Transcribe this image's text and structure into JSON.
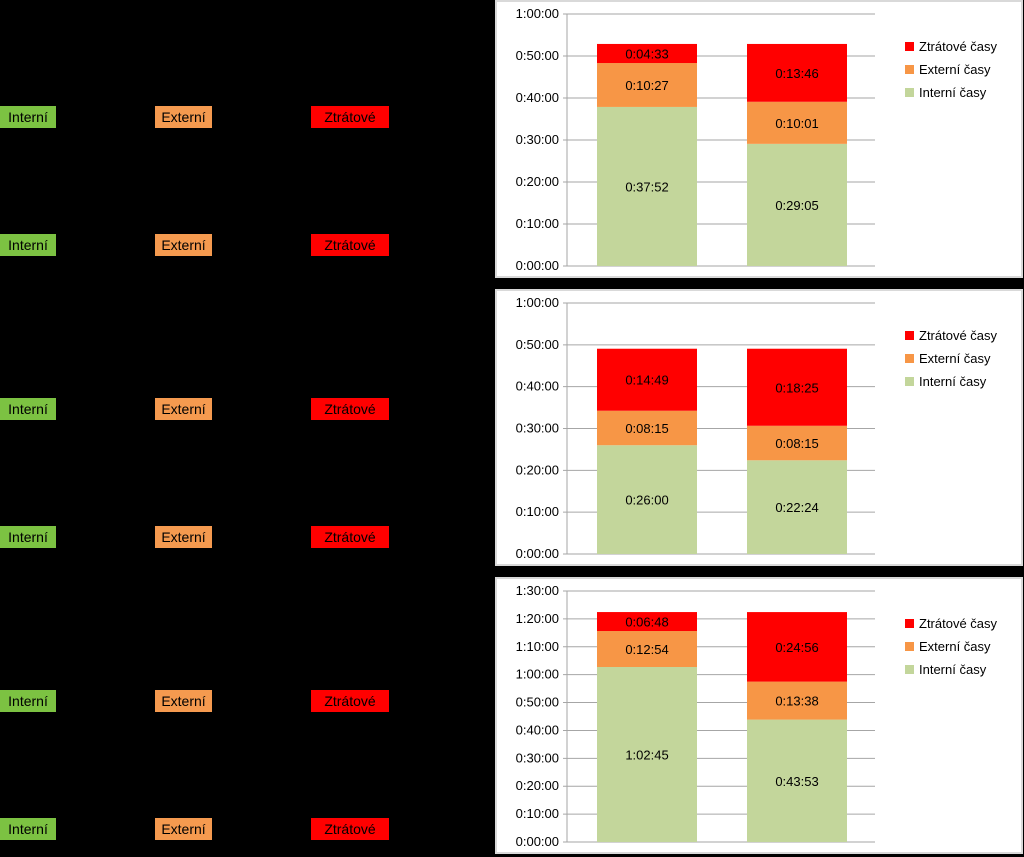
{
  "labels": {
    "internal": "Interní",
    "external": "Externí",
    "lost": "Ztrátové"
  },
  "colors": {
    "internal": "#c3d69b",
    "external": "#f79646",
    "lost": "#ff0000",
    "tag_internal": "#7cc242",
    "tag_external": "#f59a4f",
    "tag_lost": "#ff0000"
  },
  "chart_data": [
    {
      "type": "bar",
      "stacked": true,
      "categories": [
        "",
        ""
      ],
      "yticks": [
        "0:00:00",
        "0:10:00",
        "0:20:00",
        "0:30:00",
        "0:40:00",
        "0:50:00",
        "1:00:00"
      ],
      "ylim_minutes": [
        0,
        60
      ],
      "legend_position": "right",
      "series": [
        {
          "name": "Interní časy",
          "values_minutes": [
            37.87,
            29.08
          ],
          "labels": [
            "0:37:52",
            "0:29:05"
          ]
        },
        {
          "name": "Externí časy",
          "values_minutes": [
            10.45,
            10.02
          ],
          "labels": [
            "0:10:27",
            "0:10:01"
          ]
        },
        {
          "name": "Ztrátové časy",
          "values_minutes": [
            4.55,
            13.77
          ],
          "labels": [
            "0:04:33",
            "0:13:46"
          ]
        }
      ]
    },
    {
      "type": "bar",
      "stacked": true,
      "categories": [
        "",
        ""
      ],
      "yticks": [
        "0:00:00",
        "0:10:00",
        "0:20:00",
        "0:30:00",
        "0:40:00",
        "0:50:00",
        "1:00:00"
      ],
      "ylim_minutes": [
        0,
        60
      ],
      "legend_position": "right",
      "series": [
        {
          "name": "Interní časy",
          "values_minutes": [
            26.0,
            22.4
          ],
          "labels": [
            "0:26:00",
            "0:22:24"
          ]
        },
        {
          "name": "Externí časy",
          "values_minutes": [
            8.25,
            8.25
          ],
          "labels": [
            "0:08:15",
            "0:08:15"
          ]
        },
        {
          "name": "Ztrátové časy",
          "values_minutes": [
            14.82,
            18.42
          ],
          "labels": [
            "0:14:49",
            "0:18:25"
          ]
        }
      ]
    },
    {
      "type": "bar",
      "stacked": true,
      "categories": [
        "",
        ""
      ],
      "yticks": [
        "0:00:00",
        "0:10:00",
        "0:20:00",
        "0:30:00",
        "0:40:00",
        "0:50:00",
        "1:00:00",
        "1:10:00",
        "1:20:00",
        "1:30:00"
      ],
      "ylim_minutes": [
        0,
        90
      ],
      "legend_position": "right",
      "series": [
        {
          "name": "Interní časy",
          "values_minutes": [
            62.75,
            43.88
          ],
          "labels": [
            "1:02:45",
            "0:43:53"
          ]
        },
        {
          "name": "Externí časy",
          "values_minutes": [
            12.9,
            13.63
          ],
          "labels": [
            "0:12:54",
            "0:13:38"
          ]
        },
        {
          "name": "Ztrátové časy",
          "values_minutes": [
            6.8,
            24.93
          ],
          "labels": [
            "0:06:48",
            "0:24:56"
          ]
        }
      ]
    }
  ]
}
